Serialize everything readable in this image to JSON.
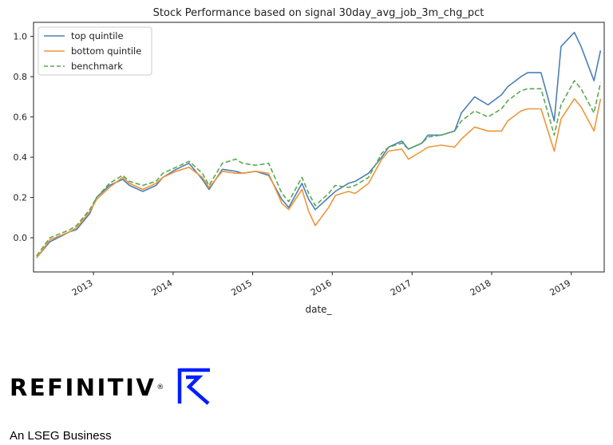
{
  "chart_data": {
    "type": "line",
    "title": "Stock Performance based on signal 30day_avg_job_3m_chg_pct",
    "xlabel": "date_",
    "ylabel": "",
    "xlim": [
      "2012-04-01",
      "2019-06-01"
    ],
    "ylim": [
      -0.17,
      1.07
    ],
    "x_ticks": [
      "2013",
      "2014",
      "2015",
      "2016",
      "2017",
      "2018",
      "2019"
    ],
    "y_ticks": [
      "0.0",
      "0.2",
      "0.4",
      "0.6",
      "0.8",
      "1.0"
    ],
    "grid": false,
    "legend_position": "top-left",
    "x": [
      "2012-04",
      "2012-06",
      "2012-09",
      "2012-10",
      "2012-12",
      "2013-01",
      "2013-03",
      "2013-05",
      "2013-06",
      "2013-08",
      "2013-10",
      "2013-11",
      "2014-01",
      "2014-03",
      "2014-05",
      "2014-06",
      "2014-08",
      "2014-10",
      "2014-11",
      "2015-01",
      "2015-03",
      "2015-05",
      "2015-06",
      "2015-08",
      "2015-09",
      "2015-10",
      "2015-12",
      "2016-01",
      "2016-03",
      "2016-04",
      "2016-06",
      "2016-08",
      "2016-09",
      "2016-11",
      "2016-12",
      "2017-02",
      "2017-03",
      "2017-05",
      "2017-07",
      "2017-08",
      "2017-10",
      "2017-12",
      "2018-02",
      "2018-03",
      "2018-05",
      "2018-06",
      "2018-08",
      "2018-10",
      "2018-11",
      "2019-01",
      "2019-02",
      "2019-04",
      "2019-05"
    ],
    "series": [
      {
        "name": "top quintile",
        "color": "#4c7fb4",
        "dash": "solid",
        "values": [
          -0.1,
          -0.02,
          0.03,
          0.04,
          0.12,
          0.2,
          0.26,
          0.29,
          0.26,
          0.23,
          0.26,
          0.3,
          0.34,
          0.37,
          0.29,
          0.24,
          0.34,
          0.33,
          0.32,
          0.33,
          0.31,
          0.19,
          0.15,
          0.27,
          0.19,
          0.14,
          0.2,
          0.23,
          0.27,
          0.28,
          0.32,
          0.4,
          0.45,
          0.48,
          0.44,
          0.47,
          0.51,
          0.51,
          0.53,
          0.62,
          0.7,
          0.66,
          0.71,
          0.75,
          0.8,
          0.82,
          0.82,
          0.58,
          0.95,
          1.02,
          0.95,
          0.78,
          0.93
        ]
      },
      {
        "name": "bottom quintile",
        "color": "#f0953a",
        "dash": "solid",
        "values": [
          -0.1,
          -0.01,
          0.03,
          0.05,
          0.13,
          0.19,
          0.25,
          0.3,
          0.27,
          0.24,
          0.27,
          0.3,
          0.33,
          0.35,
          0.3,
          0.25,
          0.33,
          0.32,
          0.32,
          0.33,
          0.32,
          0.17,
          0.14,
          0.24,
          0.13,
          0.06,
          0.15,
          0.21,
          0.23,
          0.22,
          0.27,
          0.39,
          0.43,
          0.44,
          0.39,
          0.43,
          0.45,
          0.46,
          0.45,
          0.49,
          0.55,
          0.53,
          0.53,
          0.58,
          0.63,
          0.64,
          0.64,
          0.43,
          0.59,
          0.69,
          0.65,
          0.53,
          0.69
        ]
      },
      {
        "name": "benchmark",
        "color": "#5aa94e",
        "dash": "dashed",
        "values": [
          -0.09,
          0.0,
          0.04,
          0.06,
          0.14,
          0.2,
          0.27,
          0.31,
          0.28,
          0.26,
          0.28,
          0.32,
          0.35,
          0.38,
          0.32,
          0.26,
          0.37,
          0.39,
          0.37,
          0.36,
          0.37,
          0.22,
          0.18,
          0.3,
          0.22,
          0.16,
          0.22,
          0.26,
          0.25,
          0.26,
          0.3,
          0.42,
          0.45,
          0.47,
          0.44,
          0.47,
          0.5,
          0.51,
          0.53,
          0.58,
          0.63,
          0.6,
          0.64,
          0.68,
          0.73,
          0.74,
          0.74,
          0.51,
          0.66,
          0.78,
          0.74,
          0.62,
          0.77
        ]
      }
    ]
  },
  "brand": {
    "wordmark": "REFINITIV",
    "registered": "®",
    "logo_icon": "refinitiv-r-logo-icon",
    "logo_color": "#001eff",
    "tagline": "An LSEG Business"
  }
}
